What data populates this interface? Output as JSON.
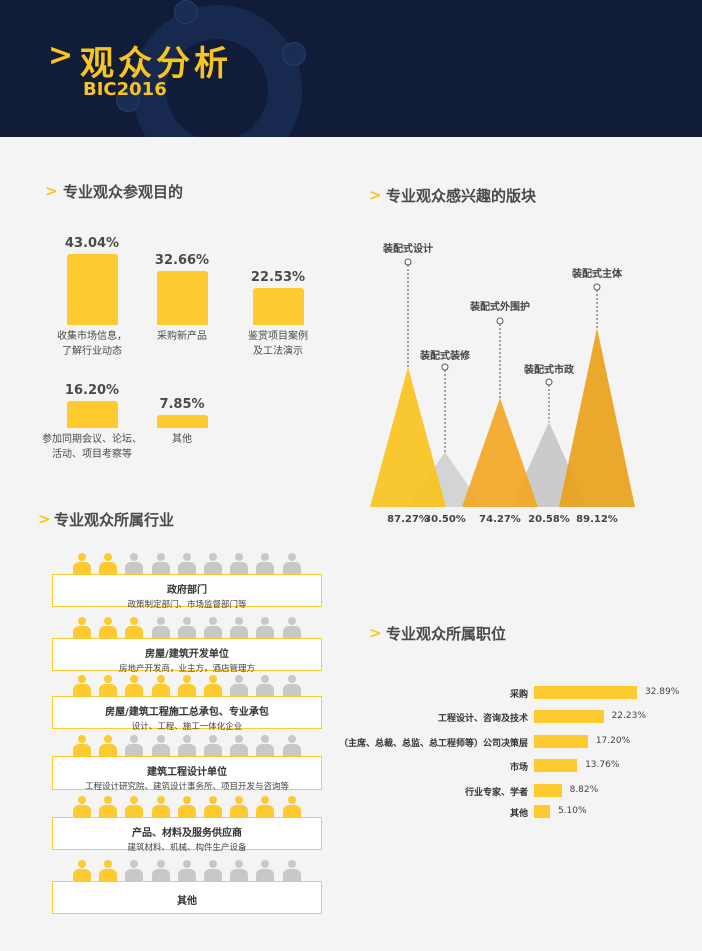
{
  "header": {
    "title": "观众分析",
    "subtitle": "BIC2016"
  },
  "purpose": {
    "heading": "专业观众参观目的",
    "items": [
      {
        "value": 43.04,
        "label": "43.04%",
        "text": "收集市场信息，\n了解行业动态"
      },
      {
        "value": 32.66,
        "label": "32.66%",
        "text": "采购新产品"
      },
      {
        "value": 22.53,
        "label": "22.53%",
        "text": "鉴赏项目案例\n及工法演示"
      },
      {
        "value": 16.2,
        "label": "16.20%",
        "text": "参加同期会议、论坛、\n活动、项目考察等"
      },
      {
        "value": 7.85,
        "label": "7.85%",
        "text": "其他"
      }
    ]
  },
  "industry": {
    "heading": "专业观众所属行业",
    "icons_total": 9,
    "groups": [
      {
        "title": "政府部门",
        "desc": "政策制定部门、市场监督部门等",
        "highlighted": 2
      },
      {
        "title": "房屋/建筑开发单位",
        "desc": "房地产开发商，业主方，酒店管理方",
        "highlighted": 3
      },
      {
        "title": "房屋/建筑工程施工总承包、专业承包",
        "desc": "设计、工程、施工一体化企业",
        "highlighted": 6
      },
      {
        "title": "建筑工程设计单位",
        "desc": "工程设计研究院、建筑设计事务所、项目开发与咨询等",
        "highlighted": 2
      },
      {
        "title": "产品、材料及服务供应商",
        "desc": "建筑材料、机械、构件生产设备",
        "highlighted": 9
      },
      {
        "title": "其他",
        "desc": "",
        "highlighted": 2
      }
    ]
  },
  "interest": {
    "heading": "专业观众感兴趣的版块",
    "items": [
      {
        "name": "装配式设计",
        "value": 87.27,
        "label": "87.27%",
        "color": "#f9c21b"
      },
      {
        "name": "装配式装修",
        "value": 30.5,
        "label": "30.50%",
        "color": "#c9c9c9"
      },
      {
        "name": "装配式外围护",
        "value": 74.27,
        "label": "74.27%",
        "color": "#f4a623"
      },
      {
        "name": "装配式市政",
        "value": 20.58,
        "label": "20.58%",
        "color": "#bdbdbd"
      },
      {
        "name": "装配式主体",
        "value": 89.12,
        "label": "89.12%",
        "color": "#e9a116"
      }
    ]
  },
  "position": {
    "heading": "专业观众所属职位",
    "items": [
      {
        "name": "采购",
        "value": 32.89,
        "label": "32.89%"
      },
      {
        "name": "工程设计、咨询及技术",
        "value": 22.23,
        "label": "22.23%"
      },
      {
        "name": "（主席、总裁、总监、总工程师等）公司决策层",
        "value": 17.2,
        "label": "17.20%"
      },
      {
        "name": "市场",
        "value": 13.76,
        "label": "13.76%"
      },
      {
        "name": "行业专家、学者",
        "value": 8.82,
        "label": "8.82%"
      },
      {
        "name": "其他",
        "value": 5.1,
        "label": "5.10%"
      }
    ]
  },
  "colors": {
    "navy": "#111c38",
    "yellow": "#fdcb2f",
    "gray": "#c8c8c8"
  }
}
